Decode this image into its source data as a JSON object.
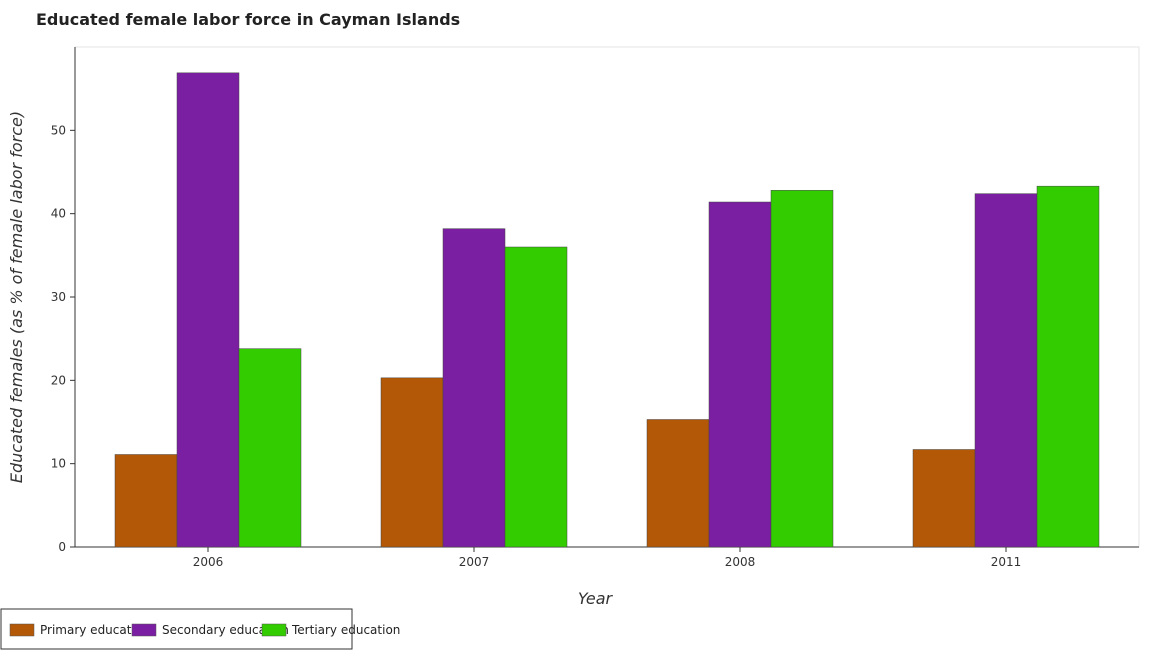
{
  "chart_data": {
    "type": "bar",
    "title": "Educated female labor force in Cayman Islands",
    "xlabel": "Year",
    "ylabel": "Educated females (as % of female labor force)",
    "categories": [
      "2006",
      "2007",
      "2008",
      "2011"
    ],
    "series": [
      {
        "name": "Primary education",
        "color": "#b35806",
        "values": [
          11.1,
          20.3,
          15.3,
          11.7
        ]
      },
      {
        "name": "Secondary education",
        "color": "#7b1fa2",
        "values": [
          56.9,
          38.2,
          41.4,
          42.4
        ]
      },
      {
        "name": "Tertiary education",
        "color": "#33cc00",
        "values": [
          23.8,
          36.0,
          42.8,
          43.3
        ]
      }
    ],
    "ylim": [
      0,
      60
    ],
    "yticks": [
      0,
      10,
      20,
      30,
      40,
      50
    ],
    "grid": false,
    "legend": "bottom-left"
  }
}
